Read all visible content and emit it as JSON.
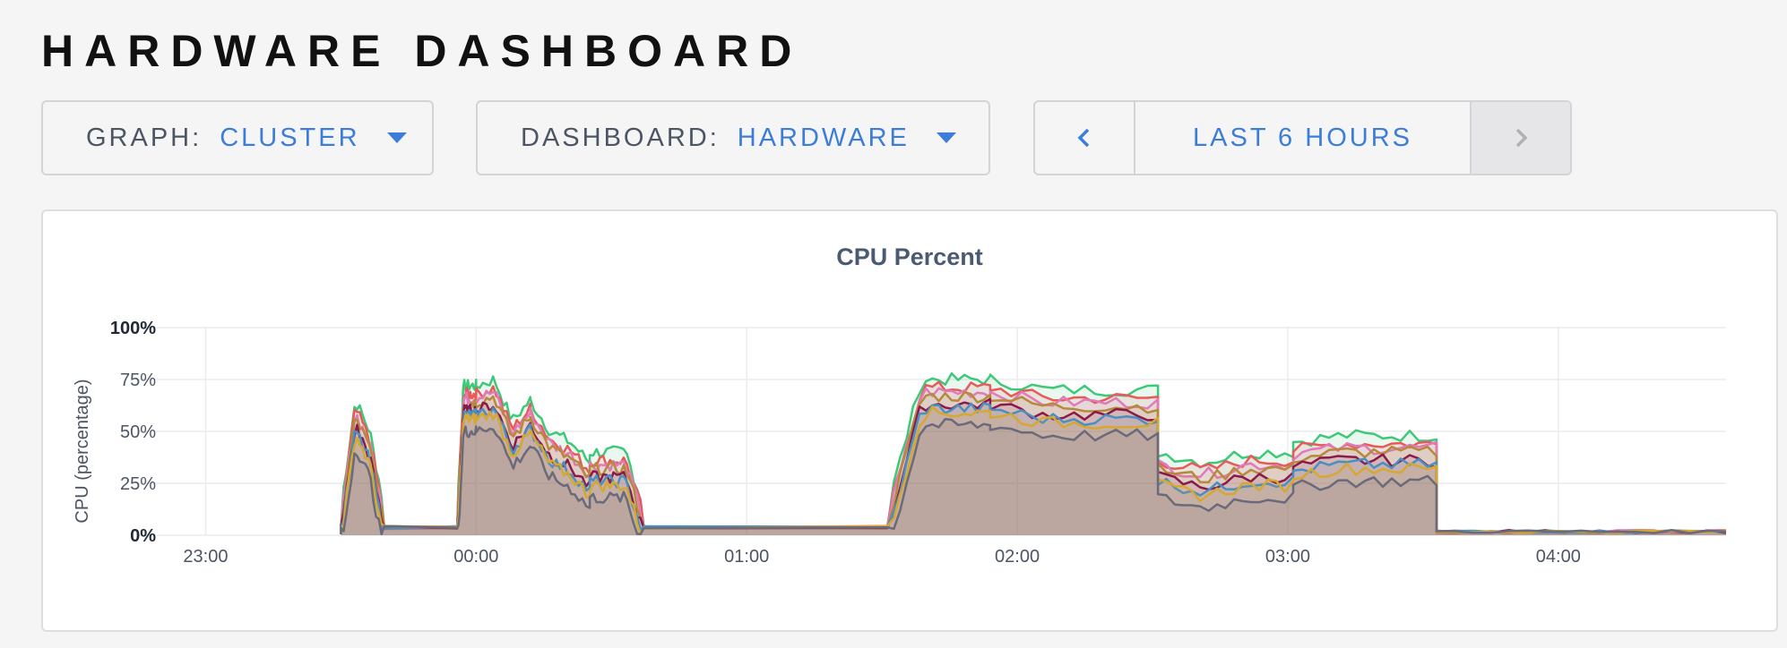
{
  "header": {
    "title": "HARDWARE DASHBOARD"
  },
  "controls": {
    "graph": {
      "label": "GRAPH:",
      "value": "CLUSTER"
    },
    "dashboard": {
      "label": "DASHBOARD:",
      "value": "HARDWARE"
    },
    "time_range": {
      "label": "LAST 6 HOURS"
    }
  },
  "colors": {
    "accent": "#3b7dd8",
    "series": [
      "#3ec878",
      "#e85a5a",
      "#e07ab8",
      "#b58a3a",
      "#8a1a4a",
      "#4a8fc0",
      "#d6a830",
      "#6a6a7a"
    ]
  },
  "chart_data": {
    "type": "area",
    "title": "CPU Percent",
    "ylabel": "CPU (percentage)",
    "xlabel": "",
    "ylim": [
      0,
      100
    ],
    "y_ticks": [
      "0%",
      "25%",
      "50%",
      "75%",
      "100%"
    ],
    "x_ticks": [
      "23:00",
      "00:00",
      "01:00",
      "02:00",
      "03:00",
      "04:00"
    ],
    "x_range_hours": [
      -1.25,
      4.62
    ],
    "grid": true,
    "legend": "none",
    "segments": [
      {
        "start": -0.5,
        "end": -0.34,
        "base": [
          3,
          55,
          40,
          3
        ]
      },
      {
        "start": -0.07,
        "end": 0.0,
        "base": [
          3,
          62,
          62,
          62
        ]
      },
      {
        "start": 0.0,
        "end": 0.2,
        "base": [
          62,
          65,
          45,
          55
        ]
      },
      {
        "start": 0.2,
        "end": 0.42,
        "base": [
          55,
          40,
          35,
          25
        ]
      },
      {
        "start": 0.42,
        "end": 0.62,
        "base": [
          30,
          30,
          30,
          3
        ]
      },
      {
        "start": 1.52,
        "end": 1.9,
        "base": [
          3,
          65,
          65,
          65
        ]
      },
      {
        "start": 1.9,
        "end": 2.52,
        "base": [
          65,
          60,
          60,
          60
        ]
      },
      {
        "start": 2.52,
        "end": 3.02,
        "base": [
          30,
          25,
          30,
          30
        ]
      },
      {
        "start": 3.02,
        "end": 3.55,
        "base": [
          35,
          38,
          38,
          38
        ]
      },
      {
        "start": 3.55,
        "end": 4.62,
        "base": [
          1,
          1,
          1,
          1
        ]
      }
    ],
    "series": [
      {
        "offset": 10
      },
      {
        "offset": 6
      },
      {
        "offset": 4
      },
      {
        "offset": 2
      },
      {
        "offset": -2
      },
      {
        "offset": -4
      },
      {
        "offset": -6
      },
      {
        "offset": -12
      }
    ]
  }
}
